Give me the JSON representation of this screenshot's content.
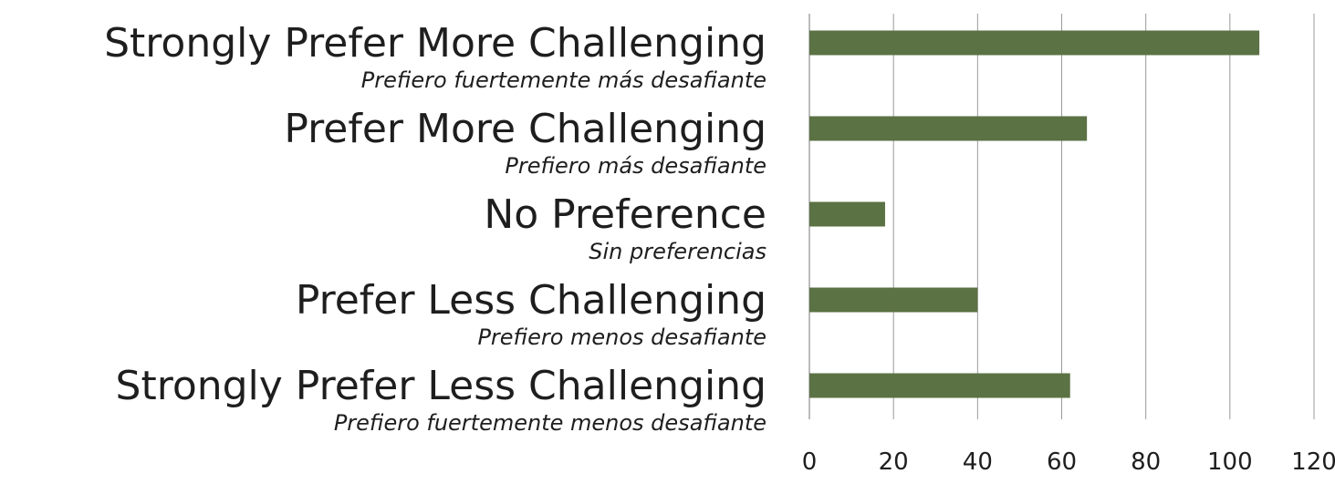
{
  "chart_data": {
    "type": "bar",
    "orientation": "horizontal",
    "categories": [
      "Strongly Prefer More Challenging",
      "Prefer More Challenging",
      "No Preference",
      "Prefer Less Challenging",
      "Strongly Prefer Less Challenging"
    ],
    "category_translations": [
      "Prefiero fuertemente más desafiante",
      "Prefiero más desafiante",
      "Sin preferencias",
      "Prefiero menos desafiante",
      "Prefiero fuertemente menos desafiante"
    ],
    "values": [
      107,
      66,
      18,
      40,
      62
    ],
    "color": "#5b7244",
    "xlim": [
      0,
      120
    ],
    "xticks": [
      0,
      20,
      40,
      60,
      80,
      100,
      120
    ],
    "grid": true
  }
}
